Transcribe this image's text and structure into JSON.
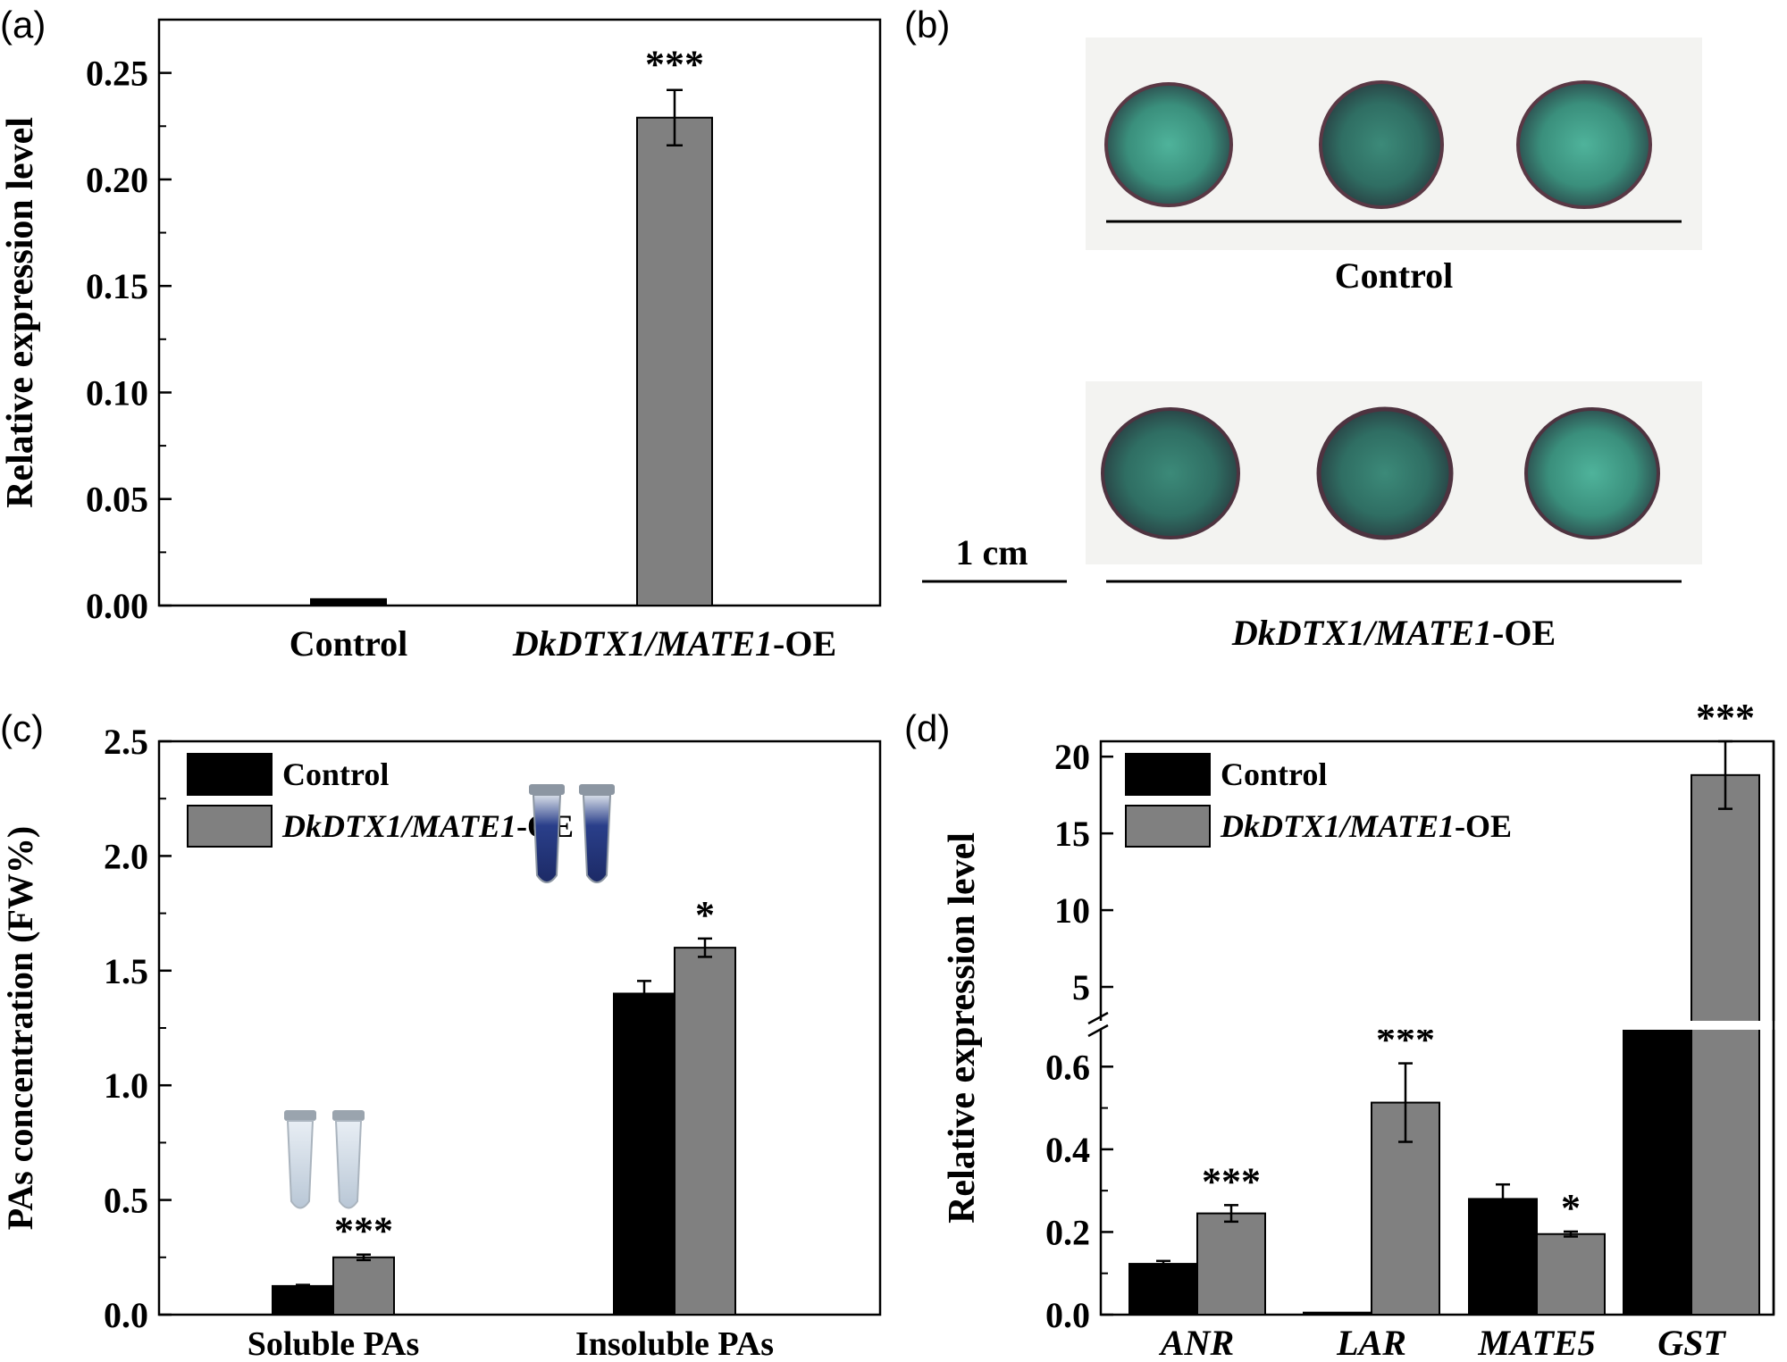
{
  "panel_labels": [
    "(a)",
    "(b)",
    "(c)",
    "(d)"
  ],
  "colors": {
    "control": "#000000",
    "oe": "#808080",
    "disc_green": "#3f9d86",
    "disc_edge": "#5a3845",
    "tube_blue": "#2a3f8a"
  },
  "panel_b": {
    "control_label": "Control",
    "oe_label_italic": "DkDTX1/MATE1",
    "oe_label_suffix": "-OE",
    "scale_bar_label": "1 cm"
  },
  "chart_data": [
    {
      "panel": "(a)",
      "type": "bar",
      "ylabel": "Relative expression level",
      "ylim": [
        0,
        0.275
      ],
      "yticks": [
        "0.00",
        "0.05",
        "0.10",
        "0.15",
        "0.20",
        "0.25"
      ],
      "categories": [
        {
          "italic": "",
          "normal": "Control"
        },
        {
          "italic": "DkDTX1/MATE1",
          "normal": "-OE"
        }
      ],
      "series": [
        {
          "values": [
            0.003,
            0.229
          ],
          "errors": [
            0.001,
            0.013
          ],
          "colorKey": "oe"
        }
      ],
      "significance": [
        "",
        "***"
      ]
    },
    {
      "panel": "(c)",
      "type": "bar",
      "ylabel": "PAs concentration (FW%)",
      "ylim": [
        0,
        2.5
      ],
      "yticks": [
        "0.0",
        "0.5",
        "1.0",
        "1.5",
        "2.0",
        "2.5"
      ],
      "categories": [
        "Soluble PAs",
        "Insoluble PAs"
      ],
      "legend": [
        {
          "italic": "",
          "normal": "Control",
          "colorKey": "control"
        },
        {
          "italic": "DkDTX1/MATE1",
          "normal": "-OE",
          "colorKey": "oe"
        }
      ],
      "legend_position": "top-left",
      "series": [
        {
          "values": [
            0.125,
            1.4
          ],
          "errors": [
            0.005,
            0.055
          ],
          "colorKey": "control",
          "significance": [
            "",
            ""
          ]
        },
        {
          "values": [
            0.25,
            1.6
          ],
          "errors": [
            0.012,
            0.04
          ],
          "colorKey": "oe",
          "significance": [
            "***",
            "*"
          ]
        }
      ]
    },
    {
      "panel": "(d)",
      "type": "bar",
      "ylabel": "Relative expression level",
      "axis_break": true,
      "ylim_lower": [
        0,
        0.7
      ],
      "ylim_upper": [
        2.5,
        21
      ],
      "yticks_lower": [
        "0.0",
        "0.2",
        "0.4",
        "0.6"
      ],
      "yticks_upper": [
        "5",
        "10",
        "15",
        "20"
      ],
      "categories": [
        "ANR",
        "LAR",
        "MATE5",
        "GST"
      ],
      "legend": [
        {
          "italic": "",
          "normal": "Control",
          "colorKey": "control"
        },
        {
          "italic": "DkDTX1/MATE1",
          "normal": "-OE",
          "colorKey": "oe"
        }
      ],
      "legend_position": "top-left",
      "series": [
        {
          "values": [
            0.123,
            0.005,
            0.28,
            1.0
          ],
          "errors": [
            0.007,
            0.0,
            0.035,
            0.0
          ],
          "colorKey": "control",
          "significance": [
            "",
            "",
            "",
            ""
          ]
        },
        {
          "values": [
            0.245,
            0.513,
            0.195,
            18.8
          ],
          "errors": [
            0.02,
            0.095,
            0.006,
            2.2
          ],
          "colorKey": "oe",
          "significance": [
            "***",
            "***",
            "*",
            "***"
          ]
        }
      ]
    }
  ]
}
